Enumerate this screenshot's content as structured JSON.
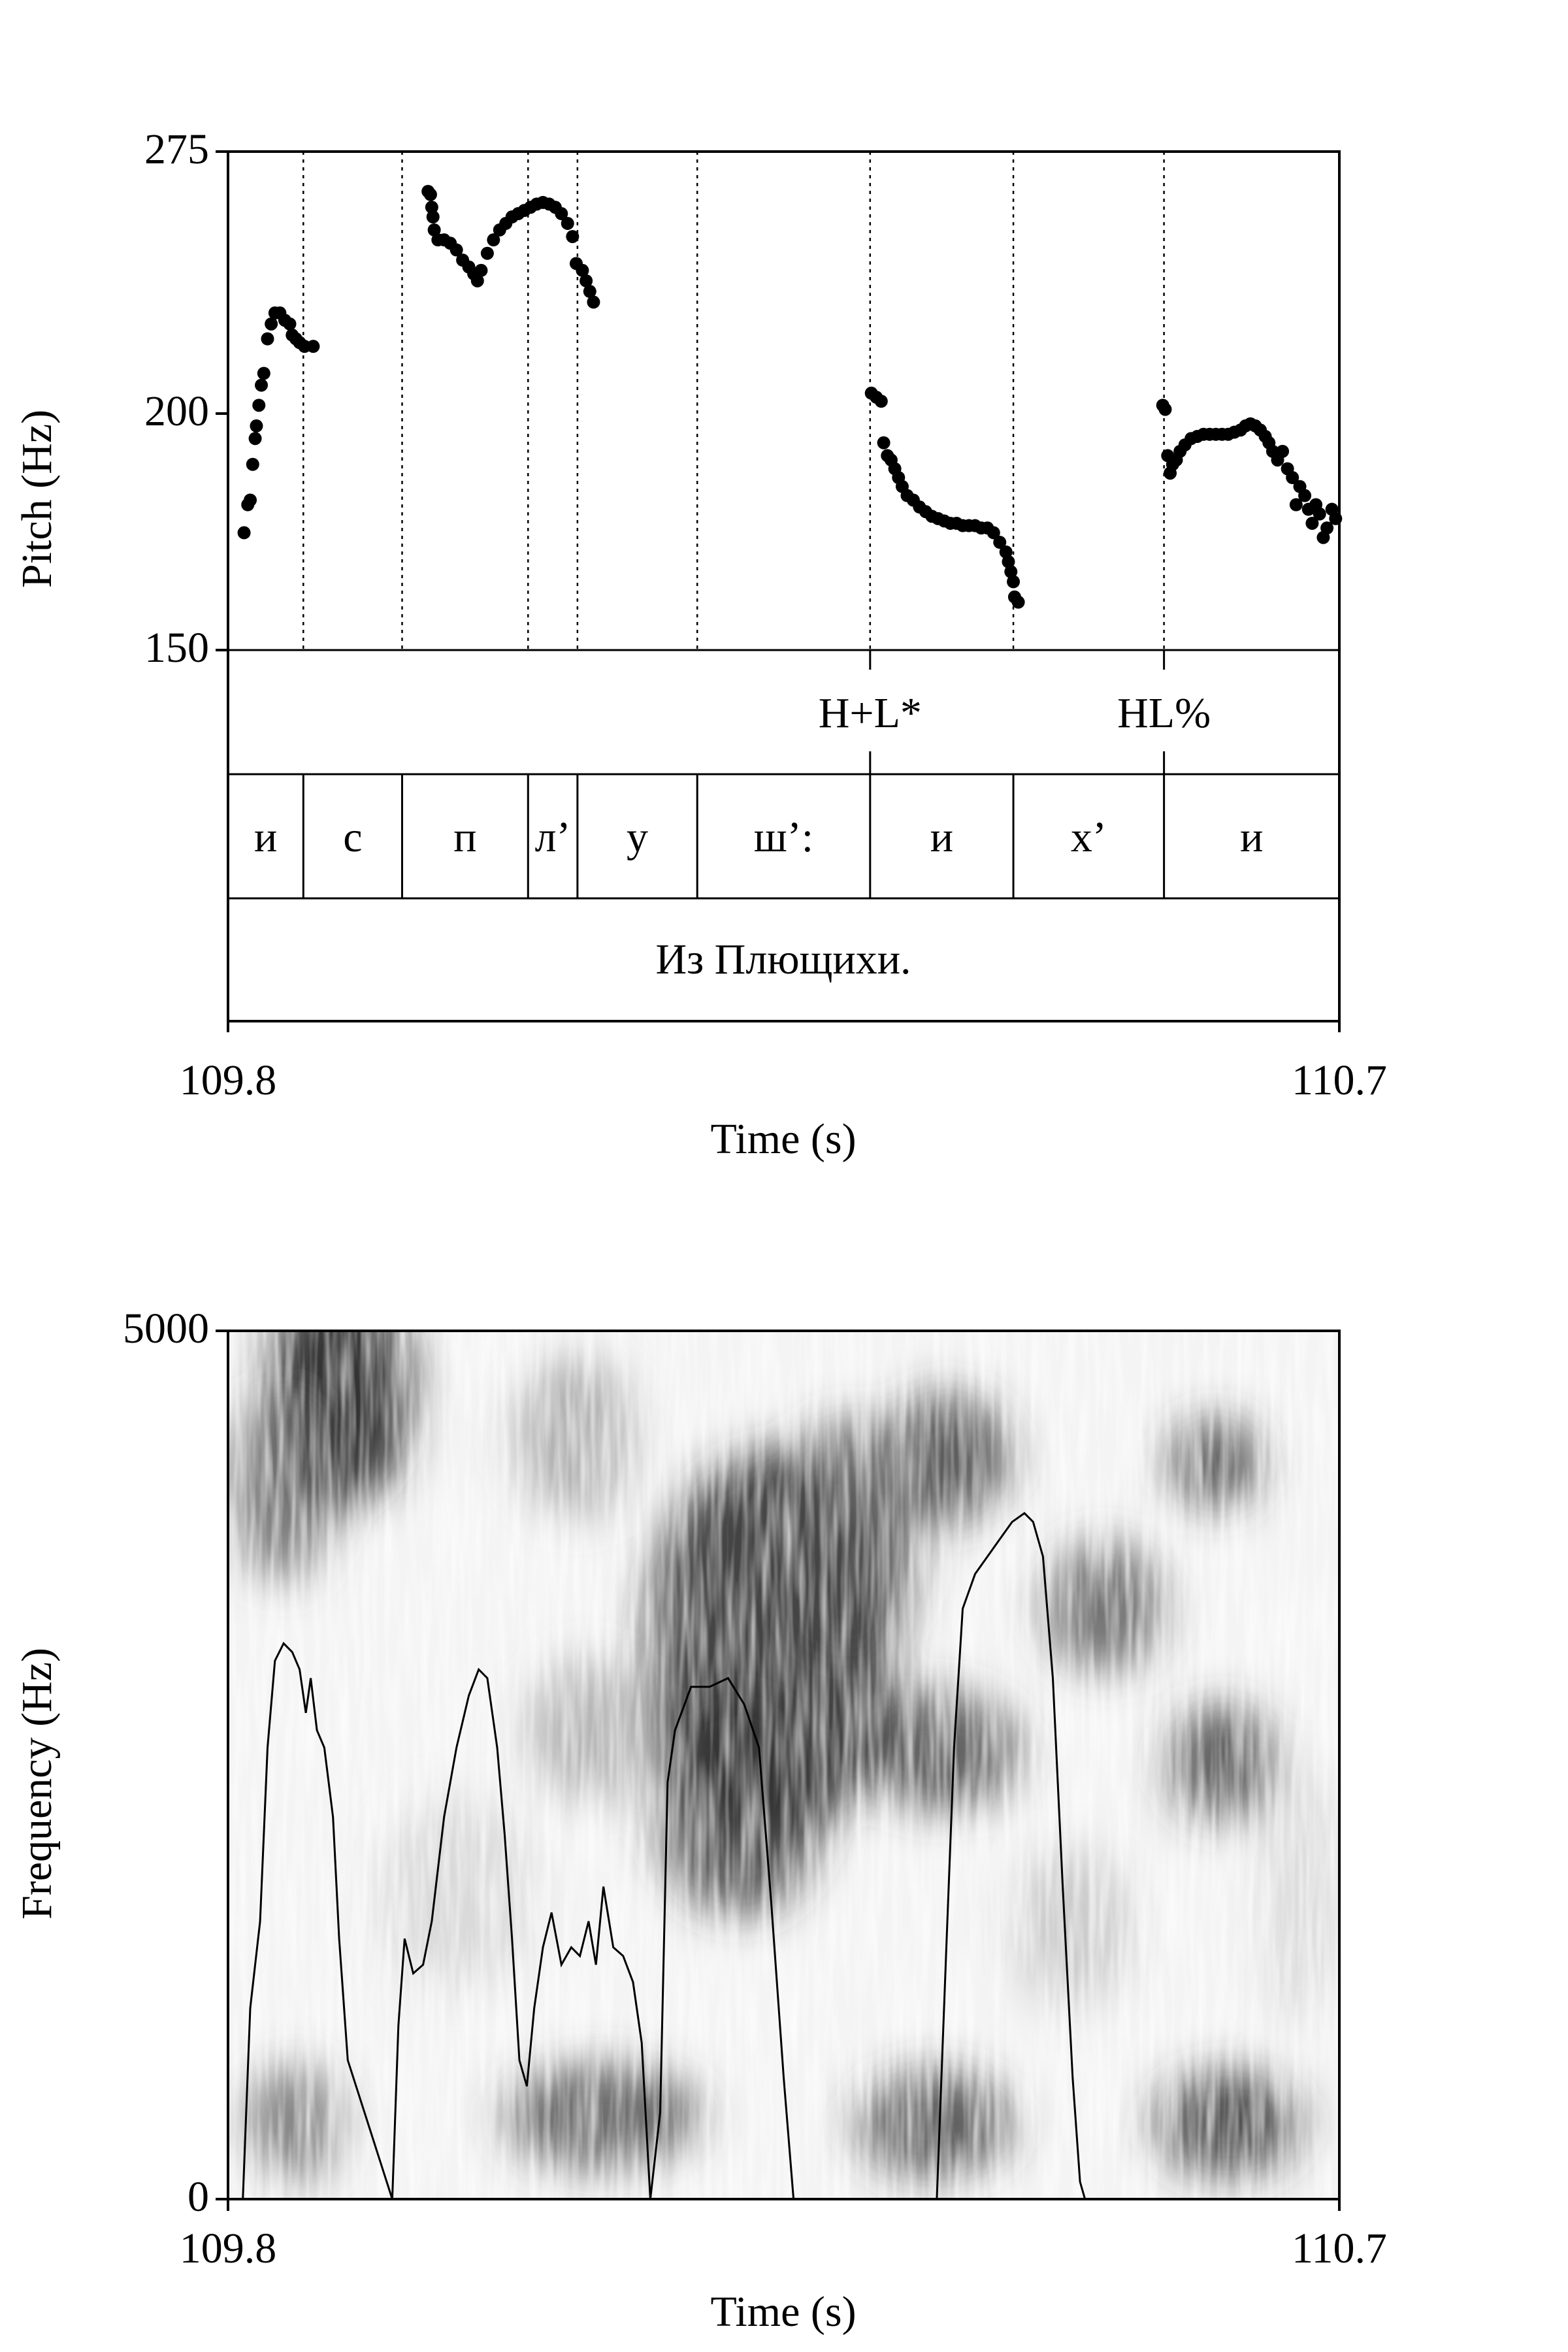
{
  "chart_data": [
    {
      "type": "scatter",
      "ylabel": "Pitch (Hz)",
      "xlabel": "Time (s)",
      "xlim": [
        109.8,
        110.7
      ],
      "ylim": [
        150,
        275
      ],
      "x_tick_labels": [
        "109.8",
        "110.7"
      ],
      "y_tick_labels": [
        "275",
        "200",
        "150"
      ],
      "series": [
        {
          "color": "#000000",
          "points": [
            [
              109.813,
              173.0
            ],
            [
              109.816,
              179.0
            ],
            [
              109.818,
              180.0
            ],
            [
              109.82,
              188.0
            ],
            [
              109.822,
              194.0
            ],
            [
              109.823,
              197.0
            ],
            [
              109.825,
              202.0
            ],
            [
              109.827,
              207.0
            ],
            [
              109.829,
              210.0
            ],
            [
              109.832,
              219.0
            ],
            [
              109.835,
              223.0
            ],
            [
              109.838,
              226.0
            ],
            [
              109.842,
              226.0
            ],
            [
              109.846,
              224.0
            ],
            [
              109.85,
              223.0
            ],
            [
              109.852,
              220.0
            ],
            [
              109.855,
              219.0
            ],
            [
              109.858,
              218.0
            ],
            [
              109.862,
              217.0
            ],
            [
              109.869,
              217.0
            ],
            [
              109.962,
              262.0
            ],
            [
              109.964,
              261.0
            ],
            [
              109.965,
              257.0
            ],
            [
              109.966,
              254.0
            ],
            [
              109.967,
              250.0
            ],
            [
              109.97,
              247.0
            ],
            [
              109.975,
              247.0
            ],
            [
              109.98,
              246.0
            ],
            [
              109.985,
              244.0
            ],
            [
              109.99,
              241.0
            ],
            [
              109.995,
              239.0
            ],
            [
              109.999,
              237.0
            ],
            [
              110.002,
              235.0
            ],
            [
              110.005,
              238.0
            ],
            [
              110.01,
              243.0
            ],
            [
              110.015,
              247.0
            ],
            [
              110.02,
              250.0
            ],
            [
              110.025,
              252.0
            ],
            [
              110.03,
              254.0
            ],
            [
              110.035,
              255.0
            ],
            [
              110.04,
              256.0
            ],
            [
              110.045,
              257.0
            ],
            [
              110.05,
              258.0
            ],
            [
              110.055,
              258.5
            ],
            [
              110.06,
              258.0
            ],
            [
              110.065,
              257.0
            ],
            [
              110.07,
              255.0
            ],
            [
              110.075,
              252.0
            ],
            [
              110.079,
              248.0
            ],
            [
              110.082,
              240.0
            ],
            [
              110.087,
              238.0
            ],
            [
              110.09,
              235.0
            ],
            [
              110.093,
              232.0
            ],
            [
              110.096,
              229.0
            ],
            [
              110.321,
              205.0
            ],
            [
              110.325,
              204.0
            ],
            [
              110.329,
              203.0
            ],
            [
              110.331,
              193.0
            ],
            [
              110.334,
              190.0
            ],
            [
              110.337,
              189.0
            ],
            [
              110.34,
              187.0
            ],
            [
              110.343,
              185.0
            ],
            [
              110.346,
              183.0
            ],
            [
              110.35,
              181.0
            ],
            [
              110.355,
              180.0
            ],
            [
              110.36,
              178.5
            ],
            [
              110.365,
              177.5
            ],
            [
              110.37,
              176.5
            ],
            [
              110.375,
              176.0
            ],
            [
              110.38,
              175.5
            ],
            [
              110.385,
              175.0
            ],
            [
              110.39,
              175.0
            ],
            [
              110.395,
              174.5
            ],
            [
              110.4,
              174.5
            ],
            [
              110.405,
              174.5
            ],
            [
              110.41,
              174.0
            ],
            [
              110.415,
              174.0
            ],
            [
              110.42,
              173.0
            ],
            [
              110.425,
              171.0
            ],
            [
              110.43,
              169.0
            ],
            [
              110.432,
              167.0
            ],
            [
              110.434,
              165.0
            ],
            [
              110.436,
              163.0
            ],
            [
              110.437,
              160.0
            ],
            [
              110.44,
              159.0
            ],
            [
              110.557,
              202.0
            ],
            [
              110.559,
              201.0
            ],
            [
              110.561,
              190.0
            ],
            [
              110.563,
              186.0
            ],
            [
              110.565,
              188.0
            ],
            [
              110.568,
              189.0
            ],
            [
              110.571,
              191.0
            ],
            [
              110.575,
              192.5
            ],
            [
              110.58,
              194.0
            ],
            [
              110.585,
              194.5
            ],
            [
              110.59,
              195.0
            ],
            [
              110.595,
              195.0
            ],
            [
              110.6,
              195.0
            ],
            [
              110.605,
              195.0
            ],
            [
              110.61,
              195.0
            ],
            [
              110.615,
              195.5
            ],
            [
              110.62,
              196.0
            ],
            [
              110.624,
              197.0
            ],
            [
              110.628,
              197.5
            ],
            [
              110.632,
              197.0
            ],
            [
              110.636,
              196.0
            ],
            [
              110.64,
              194.5
            ],
            [
              110.643,
              193.0
            ],
            [
              110.646,
              191.0
            ],
            [
              110.65,
              189.0
            ],
            [
              110.654,
              191.0
            ],
            [
              110.658,
              187.0
            ],
            [
              110.662,
              185.0
            ],
            [
              110.665,
              179.0
            ],
            [
              110.668,
              183.0
            ],
            [
              110.672,
              181.0
            ],
            [
              110.675,
              178.0
            ],
            [
              110.678,
              175.0
            ],
            [
              110.681,
              179.0
            ],
            [
              110.684,
              177.0
            ],
            [
              110.687,
              172.0
            ],
            [
              110.69,
              174.0
            ],
            [
              110.694,
              178.0
            ],
            [
              110.697,
              176.0
            ]
          ]
        }
      ]
    },
    {
      "type": "heatmap",
      "ylabel": "Frequency (Hz)",
      "xlabel": "Time (s)",
      "xlim": [
        109.8,
        110.7
      ],
      "ylim": [
        0,
        5000
      ],
      "x_tick_labels": [
        "109.8",
        "110.7"
      ],
      "y_tick_labels": [
        "5000",
        "0"
      ],
      "colormap": "greyscale",
      "intensity_curve": {
        "color": "#000000",
        "points": [
          [
            109.812,
            0
          ],
          [
            109.818,
            1100
          ],
          [
            109.826,
            1600
          ],
          [
            109.832,
            2600
          ],
          [
            109.838,
            3100
          ],
          [
            109.845,
            3200
          ],
          [
            109.852,
            3150
          ],
          [
            109.858,
            3050
          ],
          [
            109.863,
            2800
          ],
          [
            109.867,
            3000
          ],
          [
            109.872,
            2700
          ],
          [
            109.878,
            2600
          ],
          [
            109.885,
            2200
          ],
          [
            109.89,
            1500
          ],
          [
            109.897,
            800
          ],
          [
            109.933,
            0
          ],
          [
            109.938,
            1000
          ],
          [
            109.943,
            1500
          ],
          [
            109.95,
            1300
          ],
          [
            109.958,
            1350
          ],
          [
            109.965,
            1600
          ],
          [
            109.975,
            2200
          ],
          [
            109.985,
            2600
          ],
          [
            109.995,
            2900
          ],
          [
            110.003,
            3050
          ],
          [
            110.01,
            3000
          ],
          [
            110.018,
            2600
          ],
          [
            110.024,
            2100
          ],
          [
            110.03,
            1500
          ],
          [
            110.036,
            800
          ],
          [
            110.042,
            650
          ],
          [
            110.048,
            1100
          ],
          [
            110.055,
            1450
          ],
          [
            110.062,
            1650
          ],
          [
            110.07,
            1350
          ],
          [
            110.078,
            1450
          ],
          [
            110.085,
            1400
          ],
          [
            110.092,
            1600
          ],
          [
            110.098,
            1350
          ],
          [
            110.104,
            1800
          ],
          [
            110.112,
            1450
          ],
          [
            110.12,
            1400
          ],
          [
            110.128,
            1250
          ],
          [
            110.135,
            900
          ],
          [
            110.142,
            0
          ],
          [
            110.15,
            500
          ],
          [
            110.156,
            2400
          ],
          [
            110.162,
            2700
          ],
          [
            110.175,
            2950
          ],
          [
            110.19,
            2950
          ],
          [
            110.205,
            3000
          ],
          [
            110.218,
            2850
          ],
          [
            110.23,
            2600
          ],
          [
            110.24,
            1700
          ],
          [
            110.25,
            700
          ],
          [
            110.258,
            0
          ],
          [
            110.374,
            0
          ],
          [
            110.382,
            1500
          ],
          [
            110.388,
            2600
          ],
          [
            110.395,
            3400
          ],
          [
            110.405,
            3600
          ],
          [
            110.415,
            3700
          ],
          [
            110.425,
            3800
          ],
          [
            110.435,
            3900
          ],
          [
            110.445,
            3950
          ],
          [
            110.452,
            3900
          ],
          [
            110.46,
            3700
          ],
          [
            110.468,
            3000
          ],
          [
            110.476,
            1800
          ],
          [
            110.484,
            700
          ],
          [
            110.49,
            100
          ],
          [
            110.494,
            0
          ]
        ]
      }
    }
  ],
  "pitch_tier": {
    "name": "pitch",
    "boundaries": [
      109.861,
      109.941,
      110.043,
      110.083,
      110.18,
      110.32,
      110.436,
      110.558
    ]
  },
  "tone_tier": {
    "marks": [
      {
        "time": 110.32,
        "label": "H+L*"
      },
      {
        "time": 110.558,
        "label": "HL%"
      }
    ]
  },
  "segment_tier": {
    "intervals": [
      {
        "start": 109.8,
        "end": 109.861,
        "label": "и"
      },
      {
        "start": 109.861,
        "end": 109.941,
        "label": "с"
      },
      {
        "start": 109.941,
        "end": 110.043,
        "label": "п"
      },
      {
        "start": 110.043,
        "end": 110.083,
        "label": "л’"
      },
      {
        "start": 110.083,
        "end": 110.18,
        "label": "у"
      },
      {
        "start": 110.18,
        "end": 110.32,
        "label": "ш’:"
      },
      {
        "start": 110.32,
        "end": 110.436,
        "label": "и"
      },
      {
        "start": 110.436,
        "end": 110.558,
        "label": "х’"
      },
      {
        "start": 110.558,
        "end": 110.7,
        "label": "и"
      }
    ]
  },
  "utterance_tier": {
    "label": "Из Плющихи."
  }
}
